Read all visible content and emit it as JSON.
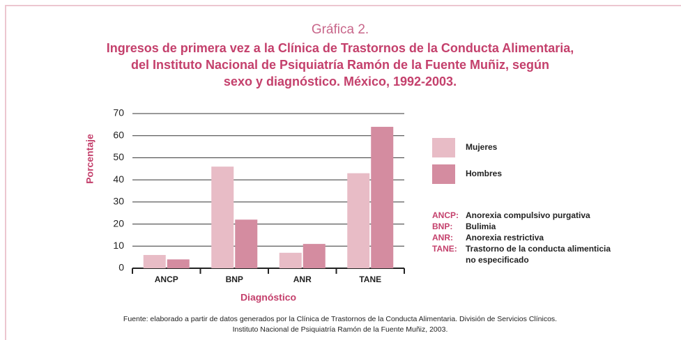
{
  "chart_data": {
    "type": "bar",
    "heading": "Gráfica 2.",
    "title": [
      "Ingresos de primera vez a la Clínica de Trastornos de la Conducta Alimentaria,",
      "del Instituto Nacional de Psiquiatría Ramón de la Fuente Muñiz, según",
      "sexo y diagnóstico. México, 1992-2003."
    ],
    "y_label": "Porcentaje",
    "x_label": "Diagnóstico",
    "categories": [
      "ANCP",
      "BNP",
      "ANR",
      "TANE"
    ],
    "series": [
      {
        "name": "Mujeres",
        "color": "#e8bcc6",
        "values": [
          6,
          46,
          7,
          43
        ]
      },
      {
        "name": "Hombres",
        "color": "#d48ca0",
        "values": [
          4,
          22,
          11,
          64
        ]
      }
    ],
    "ylim": [
      0,
      70
    ],
    "yticks": [
      0,
      10,
      20,
      30,
      40,
      50,
      60,
      70
    ],
    "grid": true,
    "abbreviations": [
      {
        "code": "ANCP:",
        "label": [
          "Anorexia compulsivo purgativa"
        ]
      },
      {
        "code": "BNP:",
        "label": [
          "Bulimia"
        ]
      },
      {
        "code": "ANR:",
        "label": [
          "Anorexia restrictiva"
        ]
      },
      {
        "code": "TANE:",
        "label": [
          "Trastorno de la conducta alimenticia",
          "no especificado"
        ]
      }
    ],
    "source": [
      "Fuente: elaborado a partir de datos generados por la Clínica de Trastornos de la Conducta Alimentaria. División de Servicios Clínicos.",
      "Instituto Nacional de Psiquiatría Ramón de la Fuente Muñiz, 2003."
    ]
  }
}
